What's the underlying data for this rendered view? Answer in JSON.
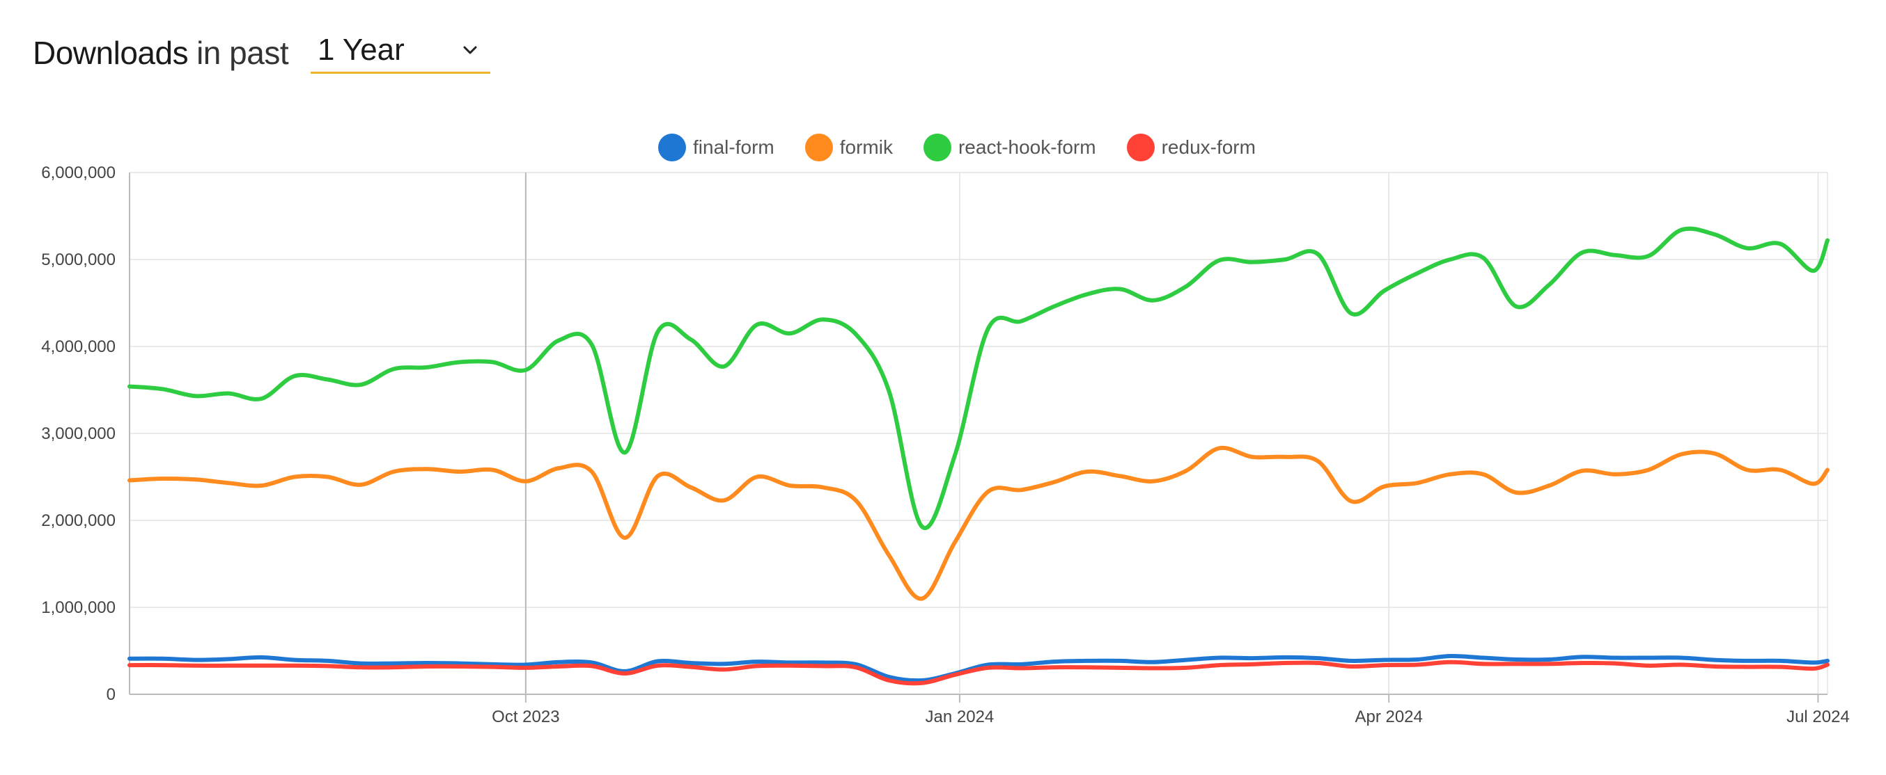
{
  "header": {
    "title_strong": "Downloads",
    "title_light": "in past",
    "period_value": "1 Year",
    "period_icon": "chevron-down-icon"
  },
  "colors": {
    "final-form": "#1f77d4",
    "formik": "#ff8a1e",
    "react-hook-form": "#2ecc40",
    "redux-form": "#ff4136",
    "underline": "#f0b429",
    "grid": "#e3e3e3",
    "axis": "#bbbbbb"
  },
  "legend": [
    {
      "name": "final-form",
      "icon": "legend-dot"
    },
    {
      "name": "formik",
      "icon": "legend-dot"
    },
    {
      "name": "react-hook-form",
      "icon": "legend-dot"
    },
    {
      "name": "redux-form",
      "icon": "legend-dot"
    }
  ],
  "chart_data": {
    "type": "line",
    "title": "",
    "xlabel": "",
    "ylabel": "",
    "ylim": [
      0,
      6000000
    ],
    "y_ticks": [
      0,
      1000000,
      2000000,
      3000000,
      4000000,
      5000000,
      6000000
    ],
    "y_tick_labels": [
      "0",
      "1,000,000",
      "2,000,000",
      "3,000,000",
      "4,000,000",
      "5,000,000",
      "6,000,000"
    ],
    "x_tick_labels": [
      "Oct 2023",
      "Jan 2024",
      "Apr 2024",
      "Jul 2024"
    ],
    "x_tick_dates": [
      "2023-10-01",
      "2024-01-01",
      "2024-04-01",
      "2024-07-01"
    ],
    "x_range": [
      "2023-07-09",
      "2024-07-03"
    ],
    "grid": true,
    "legend_position": "top-center",
    "x": [
      "2023-07-09",
      "2023-07-16",
      "2023-07-23",
      "2023-07-30",
      "2023-08-06",
      "2023-08-13",
      "2023-08-20",
      "2023-08-27",
      "2023-09-03",
      "2023-09-10",
      "2023-09-17",
      "2023-09-24",
      "2023-10-01",
      "2023-10-08",
      "2023-10-15",
      "2023-10-22",
      "2023-10-29",
      "2023-11-05",
      "2023-11-12",
      "2023-11-19",
      "2023-11-26",
      "2023-12-03",
      "2023-12-10",
      "2023-12-17",
      "2023-12-24",
      "2023-12-31",
      "2024-01-07",
      "2024-01-14",
      "2024-01-21",
      "2024-01-28",
      "2024-02-04",
      "2024-02-11",
      "2024-02-18",
      "2024-02-25",
      "2024-03-03",
      "2024-03-10",
      "2024-03-17",
      "2024-03-24",
      "2024-03-31",
      "2024-04-07",
      "2024-04-14",
      "2024-04-21",
      "2024-04-28",
      "2024-05-05",
      "2024-05-12",
      "2024-05-19",
      "2024-05-26",
      "2024-06-02",
      "2024-06-09",
      "2024-06-16",
      "2024-06-23",
      "2024-06-30",
      "2024-07-03"
    ],
    "series": [
      {
        "name": "react-hook-form",
        "values": [
          3540000,
          3510000,
          3430000,
          3460000,
          3400000,
          3660000,
          3620000,
          3560000,
          3740000,
          3760000,
          3820000,
          3820000,
          3730000,
          4070000,
          4020000,
          2780000,
          4170000,
          4080000,
          3770000,
          4250000,
          4150000,
          4310000,
          4140000,
          3490000,
          1930000,
          2750000,
          4200000,
          4290000,
          4460000,
          4600000,
          4660000,
          4530000,
          4690000,
          4990000,
          4970000,
          5000000,
          5060000,
          4380000,
          4640000,
          4840000,
          5000000,
          5020000,
          4460000,
          4710000,
          5080000,
          5050000,
          5040000,
          5340000,
          5290000,
          5130000,
          5180000,
          4870000,
          5220000
        ]
      },
      {
        "name": "formik",
        "values": [
          2460000,
          2480000,
          2470000,
          2430000,
          2400000,
          2500000,
          2500000,
          2410000,
          2560000,
          2590000,
          2560000,
          2580000,
          2450000,
          2600000,
          2560000,
          1800000,
          2510000,
          2380000,
          2230000,
          2500000,
          2400000,
          2380000,
          2230000,
          1600000,
          1100000,
          1750000,
          2330000,
          2350000,
          2440000,
          2560000,
          2510000,
          2450000,
          2570000,
          2830000,
          2730000,
          2730000,
          2680000,
          2220000,
          2390000,
          2430000,
          2530000,
          2530000,
          2320000,
          2400000,
          2570000,
          2530000,
          2580000,
          2760000,
          2770000,
          2580000,
          2580000,
          2420000,
          2580000
        ]
      },
      {
        "name": "final-form",
        "values": [
          410000,
          410000,
          395000,
          405000,
          425000,
          395000,
          385000,
          355000,
          355000,
          360000,
          355000,
          345000,
          340000,
          370000,
          365000,
          265000,
          380000,
          360000,
          350000,
          375000,
          365000,
          365000,
          345000,
          200000,
          160000,
          240000,
          340000,
          345000,
          375000,
          385000,
          385000,
          370000,
          395000,
          420000,
          415000,
          425000,
          415000,
          385000,
          395000,
          400000,
          440000,
          420000,
          400000,
          400000,
          430000,
          420000,
          420000,
          420000,
          395000,
          385000,
          385000,
          365000,
          385000
        ]
      },
      {
        "name": "redux-form",
        "values": [
          335000,
          335000,
          330000,
          330000,
          330000,
          330000,
          325000,
          310000,
          310000,
          320000,
          320000,
          315000,
          305000,
          320000,
          325000,
          240000,
          330000,
          315000,
          285000,
          325000,
          330000,
          325000,
          310000,
          160000,
          130000,
          225000,
          305000,
          300000,
          310000,
          310000,
          305000,
          300000,
          305000,
          335000,
          345000,
          360000,
          360000,
          320000,
          335000,
          340000,
          370000,
          350000,
          350000,
          350000,
          360000,
          355000,
          330000,
          340000,
          320000,
          315000,
          315000,
          295000,
          340000
        ]
      }
    ]
  }
}
